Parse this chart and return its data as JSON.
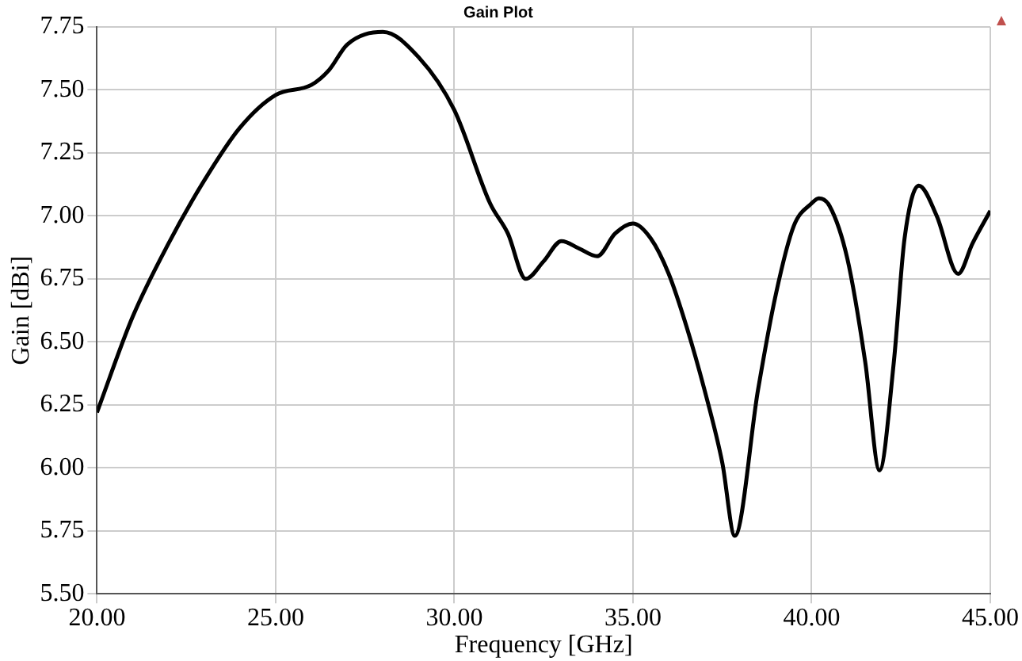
{
  "chart_data": {
    "type": "line",
    "title": "Gain Plot",
    "xlabel": "Frequency [GHz]",
    "ylabel": "Gain [dBi]",
    "x": [
      20,
      21,
      22,
      23,
      24,
      25,
      26,
      26.5,
      27,
      28,
      29,
      30,
      31,
      31.5,
      32,
      32.5,
      33,
      33.5,
      34,
      34.5,
      35,
      35.5,
      36,
      36.5,
      37,
      37.5,
      37.85,
      38.5,
      39,
      39.5,
      40,
      40.2,
      40.5,
      41,
      41.5,
      41.9,
      42.3,
      42.6,
      43,
      43.5,
      44.1,
      44.5,
      45
    ],
    "series": [
      {
        "color": "#000000",
        "values": [
          6.22,
          6.6,
          6.89,
          7.14,
          7.35,
          7.48,
          7.52,
          7.58,
          7.68,
          7.73,
          7.63,
          7.42,
          7.05,
          6.93,
          6.75,
          6.82,
          6.9,
          6.87,
          6.84,
          6.93,
          6.97,
          6.91,
          6.77,
          6.56,
          6.31,
          6.02,
          5.73,
          6.31,
          6.69,
          6.96,
          7.05,
          7.07,
          7.04,
          6.83,
          6.42,
          5.99,
          6.42,
          6.91,
          7.12,
          7,
          6.77,
          6.89,
          7.02
        ]
      }
    ],
    "xlim": [
      20,
      45
    ],
    "ylim": [
      5.5,
      7.75
    ],
    "xticks": [
      {
        "value": 20,
        "label": "20.00"
      },
      {
        "value": 25,
        "label": "25.00"
      },
      {
        "value": 30,
        "label": "30.00"
      },
      {
        "value": 35,
        "label": "35.00"
      },
      {
        "value": 40,
        "label": "40.00"
      },
      {
        "value": 45,
        "label": "45.00"
      }
    ],
    "yticks": [
      {
        "value": 5.5,
        "label": "5.50"
      },
      {
        "value": 5.75,
        "label": "5.75"
      },
      {
        "value": 6,
        "label": "6.00"
      },
      {
        "value": 6.25,
        "label": "6.25"
      },
      {
        "value": 6.5,
        "label": "6.50"
      },
      {
        "value": 6.75,
        "label": "6.75"
      },
      {
        "value": 7,
        "label": "7.00"
      },
      {
        "value": 7.25,
        "label": "7.25"
      },
      {
        "value": 7.5,
        "label": "7.50"
      },
      {
        "value": 7.75,
        "label": "7.75"
      }
    ],
    "grid": true,
    "legend": false,
    "marker": "none",
    "line_style": "solid"
  }
}
